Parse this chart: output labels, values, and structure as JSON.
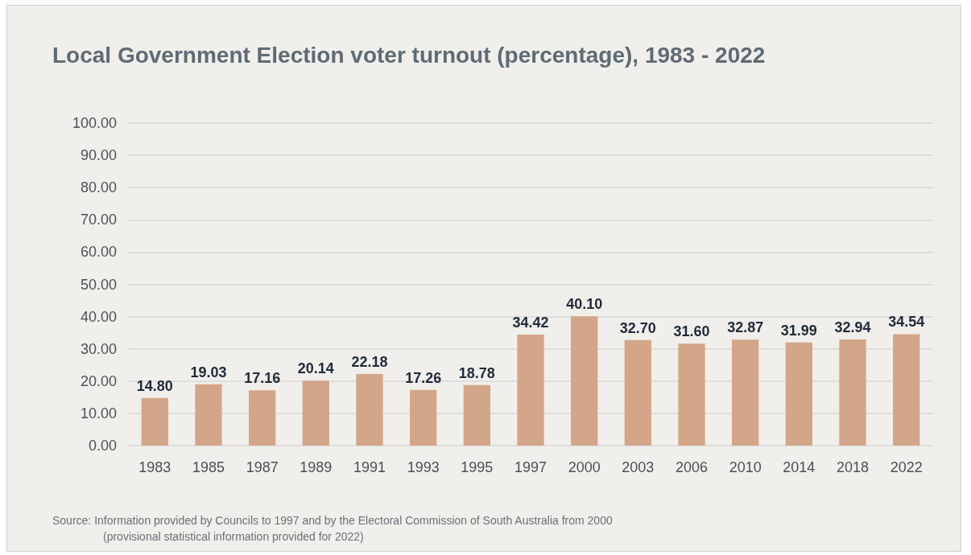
{
  "chart_data": {
    "type": "bar",
    "title": "Local Government Election voter turnout (percentage), 1983 - 2022",
    "categories": [
      "1983",
      "1985",
      "1987",
      "1989",
      "1991",
      "1993",
      "1995",
      "1997",
      "2000",
      "2003",
      "2006",
      "2010",
      "2014",
      "2018",
      "2022"
    ],
    "values": [
      14.8,
      19.03,
      17.16,
      20.14,
      22.18,
      17.26,
      18.78,
      34.42,
      40.1,
      32.7,
      31.6,
      32.87,
      31.99,
      32.94,
      34.54
    ],
    "value_labels": [
      "14.80",
      "19.03",
      "17.16",
      "20.14",
      "22.18",
      "17.26",
      "18.78",
      "34.42",
      "40.10",
      "32.70",
      "31.60",
      "32.87",
      "31.99",
      "32.94",
      "34.54"
    ],
    "color": "#d4a689",
    "ylim": [
      0,
      100
    ],
    "yticks": [
      {
        "value": 0,
        "label": "0.00"
      },
      {
        "value": 10,
        "label": "10.00"
      },
      {
        "value": 20,
        "label": "20.00"
      },
      {
        "value": 30,
        "label": "30.00"
      },
      {
        "value": 40,
        "label": "40.00"
      },
      {
        "value": 50,
        "label": "50.00"
      },
      {
        "value": 60,
        "label": "60.00"
      },
      {
        "value": 70,
        "label": "70.00"
      },
      {
        "value": 80,
        "label": "80.00"
      },
      {
        "value": 90,
        "label": "90.00"
      },
      {
        "value": 100,
        "label": "100.00"
      }
    ],
    "grid": "y",
    "annotations": [
      "Source: Information provided by Councils to 1997 and by the Electoral Commission of South Australia from 2000",
      "(provisional statistical information provided for 2022)"
    ]
  }
}
